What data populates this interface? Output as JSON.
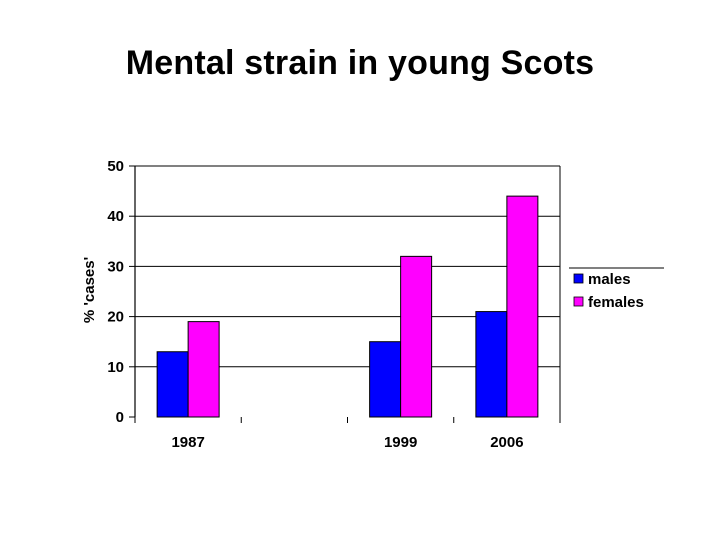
{
  "slide": {
    "title": "Mental strain in young Scots"
  },
  "chart_data": {
    "type": "bar",
    "categories": [
      "1987",
      "",
      "1999",
      "2006"
    ],
    "series": [
      {
        "name": "males",
        "color": "#0000ff",
        "values": [
          13,
          null,
          15,
          21
        ]
      },
      {
        "name": "females",
        "color": "#ff00ff",
        "values": [
          19,
          null,
          32,
          44
        ]
      }
    ],
    "ylabel": "% 'cases'",
    "ylim": [
      0,
      50
    ],
    "yticks": [
      0,
      10,
      20,
      30,
      40,
      50
    ],
    "grid": true,
    "legend": "right"
  }
}
